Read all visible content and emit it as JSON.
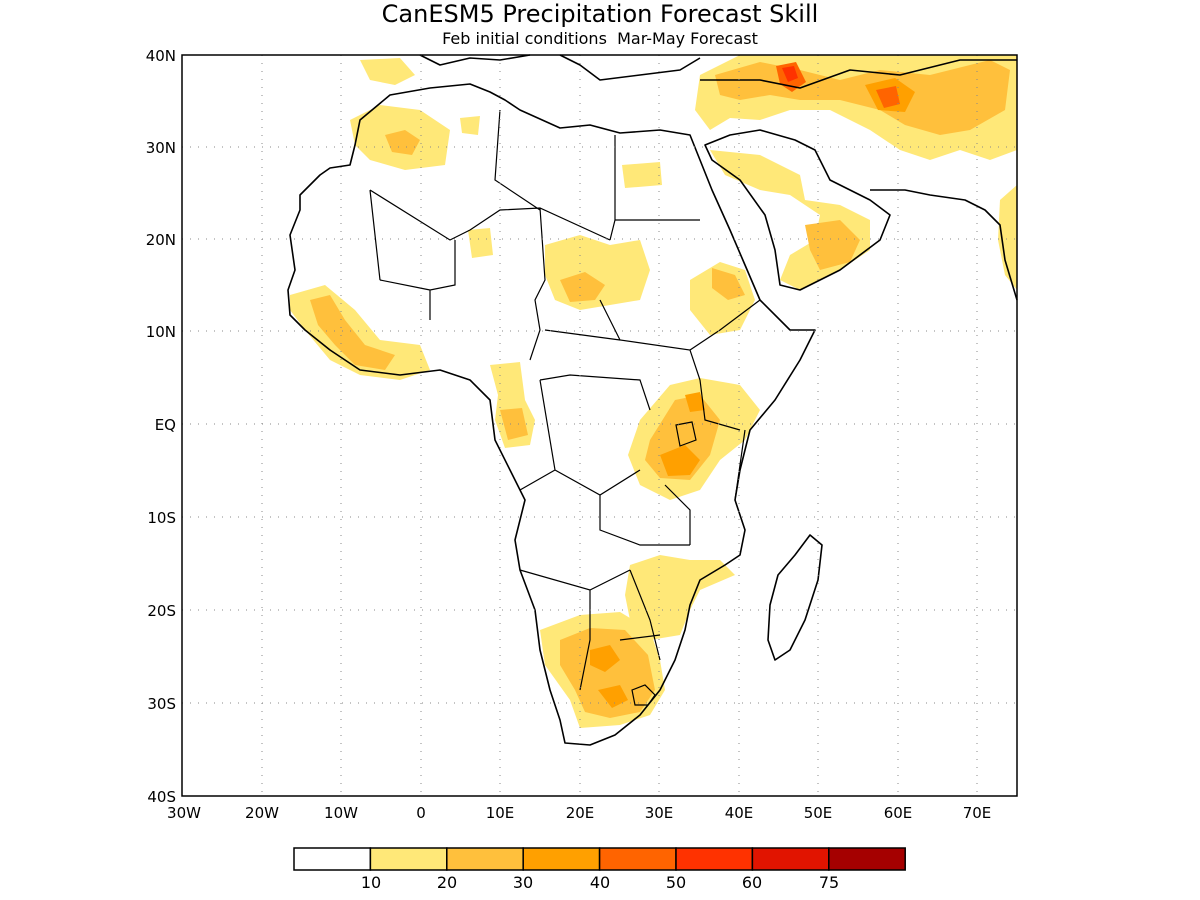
{
  "map": {
    "title": "CanESM5 Precipitation Forecast Skill",
    "subtitle": "Feb initial conditions  Mar-May Forecast",
    "lat_ticks": [
      "40N",
      "30N",
      "20N",
      "10N",
      "EQ",
      "10S",
      "20S",
      "30S",
      "40S"
    ],
    "lon_ticks": [
      "30W",
      "20W",
      "10W",
      "0",
      "10E",
      "20E",
      "30E",
      "40E",
      "50E",
      "60E",
      "70E"
    ],
    "colorbar": {
      "labels": [
        "10",
        "20",
        "30",
        "40",
        "50",
        "60",
        "75"
      ],
      "colors": [
        "#ffffff",
        "#ffe878",
        "#ffc03c",
        "#ffa000",
        "#ff6400",
        "#ff3200",
        "#e11400",
        "#a50000"
      ]
    }
  }
}
